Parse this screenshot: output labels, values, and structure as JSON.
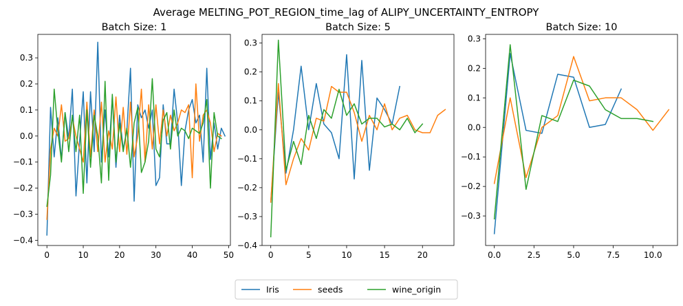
{
  "chart_data": {
    "suptitle": "Average MELTING_POT_REGION_time_lag of ALIPY_UNCERTAINTY_ENTROPY",
    "legend": {
      "placement": "bottom-center",
      "entries": [
        "Iris",
        "seeds",
        "wine_origin"
      ]
    },
    "colors": {
      "Iris": "#1f77b4",
      "seeds": "#ff7f0e",
      "wine_origin": "#2ca02c"
    },
    "charts": [
      {
        "type": "line",
        "title": "Batch Size: 1",
        "xlim": [
          -2.5,
          50.5
        ],
        "ylim": [
          -0.42,
          0.39
        ],
        "xticks": [
          0,
          10,
          20,
          30,
          40,
          50
        ],
        "yticks": [
          -0.4,
          -0.3,
          -0.2,
          -0.1,
          0.0,
          0.1,
          0.2,
          0.3
        ],
        "series": [
          {
            "name": "Iris",
            "x_start": 0,
            "values": [
              -0.38,
              0.11,
              -0.08,
              0.07,
              -0.09,
              0.09,
              -0.01,
              0.18,
              -0.23,
              -0.02,
              0.17,
              -0.18,
              0.17,
              -0.06,
              0.36,
              -0.1,
              0.1,
              -0.08,
              0.15,
              -0.12,
              0.08,
              -0.05,
              0.02,
              0.26,
              -0.25,
              0.12,
              0.07,
              0.1,
              0.03,
              0.1,
              -0.19,
              -0.16,
              0.12,
              -0.03,
              -0.03,
              0.18,
              0.05,
              -0.19,
              0.02,
              0.1,
              0.14,
              0.05,
              0.08,
              -0.1,
              0.26,
              -0.09,
              0.05,
              -0.05,
              0.03,
              0.0
            ]
          },
          {
            "name": "seeds",
            "x_start": 0,
            "values": [
              -0.32,
              -0.05,
              0.03,
              0.0,
              0.12,
              -0.02,
              -0.01,
              0.07,
              0.0,
              -0.05,
              -0.1,
              0.13,
              -0.08,
              0.1,
              -0.06,
              0.13,
              -0.1,
              0.02,
              -0.05,
              0.15,
              -0.06,
              0.11,
              -0.07,
              0.13,
              -0.08,
              0.0,
              0.18,
              -0.1,
              0.12,
              -0.05,
              0.12,
              -0.03,
              0.1,
              0.0,
              0.08,
              0.02,
              0.05,
              0.1,
              0.09,
              0.12,
              -0.16,
              0.2,
              -0.02,
              0.08,
              0.1,
              0.05,
              -0.06,
              0.01,
              0.0
            ]
          },
          {
            "name": "wine_origin",
            "x_start": 0,
            "values": [
              -0.27,
              -0.15,
              0.18,
              0.02,
              -0.1,
              0.09,
              -0.06,
              0.08,
              -0.06,
              0.08,
              -0.22,
              0.1,
              -0.12,
              0.08,
              0.0,
              -0.18,
              0.21,
              -0.17,
              0.16,
              -0.1,
              0.05,
              -0.06,
              0.03,
              -0.12,
              0.05,
              0.11,
              -0.14,
              -0.1,
              -0.02,
              0.22,
              -0.05,
              -0.08,
              0.06,
              0.09,
              -0.05,
              0.1,
              0.0,
              0.03,
              0.02,
              -0.01,
              0.03,
              0.02,
              0.01,
              0.05,
              0.14,
              -0.2,
              0.09,
              0.0,
              -0.01
            ]
          }
        ]
      },
      {
        "type": "line",
        "title": "Batch Size: 5",
        "xlim": [
          -1.15,
          24.15
        ],
        "ylim": [
          -0.4,
          0.33
        ],
        "xticks": [
          0,
          5,
          10,
          15,
          20
        ],
        "yticks": [
          -0.4,
          -0.3,
          -0.2,
          -0.1,
          0.0,
          0.1,
          0.2,
          0.3
        ],
        "series": [
          {
            "name": "Iris",
            "x_start": 0,
            "values": [
              -0.25,
              0.13,
              -0.15,
              0.0,
              0.22,
              0.0,
              0.16,
              0.02,
              -0.01,
              -0.1,
              0.26,
              -0.17,
              0.24,
              -0.14,
              0.11,
              0.07,
              0.02,
              0.15
            ]
          },
          {
            "name": "seeds",
            "x_start": 0,
            "values": [
              -0.25,
              0.16,
              -0.19,
              -0.1,
              -0.03,
              -0.07,
              0.04,
              0.03,
              0.15,
              0.13,
              0.13,
              0.06,
              -0.04,
              0.05,
              0.0,
              0.09,
              0.0,
              0.04,
              0.05,
              0.0,
              -0.01,
              -0.01,
              0.05,
              0.07
            ]
          },
          {
            "name": "wine_origin",
            "x_start": 0,
            "values": [
              -0.37,
              0.31,
              -0.14,
              -0.04,
              -0.12,
              0.05,
              -0.03,
              0.07,
              0.04,
              0.14,
              0.05,
              0.09,
              0.02,
              0.04,
              0.04,
              0.01,
              0.02,
              0.0,
              0.04,
              -0.01,
              0.02
            ]
          }
        ]
      },
      {
        "type": "line",
        "title": "Batch Size: 10",
        "xlim": [
          -0.55,
          11.55
        ],
        "ylim": [
          -0.4,
          0.315
        ],
        "xticks": [
          0.0,
          2.5,
          5.0,
          7.5,
          10.0
        ],
        "yticks": [
          -0.3,
          -0.2,
          -0.1,
          0.0,
          0.1,
          0.2,
          0.3
        ],
        "series": [
          {
            "name": "Iris",
            "x_start": 0,
            "values": [
              -0.36,
              0.25,
              -0.01,
              -0.02,
              0.18,
              0.17,
              0.0,
              0.01,
              0.13
            ]
          },
          {
            "name": "seeds",
            "x_start": 0,
            "values": [
              -0.19,
              0.1,
              -0.17,
              0.0,
              0.04,
              0.24,
              0.09,
              0.1,
              0.1,
              0.06,
              -0.01,
              0.06
            ]
          },
          {
            "name": "wine_origin",
            "x_start": 0,
            "values": [
              -0.31,
              0.28,
              -0.21,
              0.04,
              0.02,
              0.16,
              0.14,
              0.06,
              0.03,
              0.03,
              0.02
            ]
          }
        ]
      }
    ]
  }
}
